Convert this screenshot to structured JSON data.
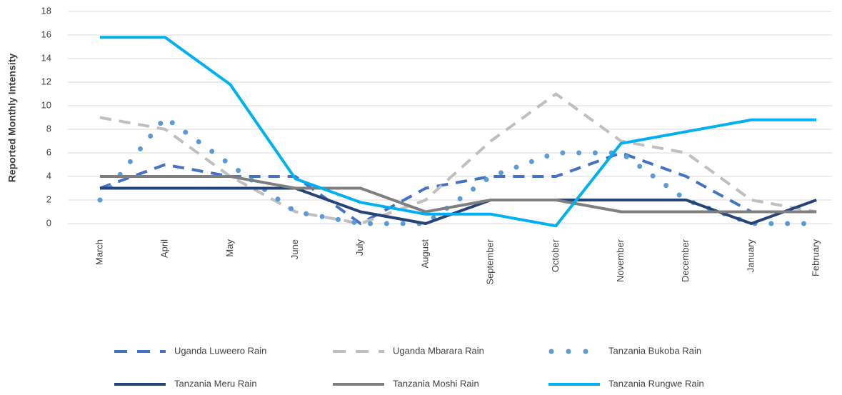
{
  "chart_data": {
    "type": "line",
    "y_label": "Reported Monthly Intensity",
    "categories": [
      "March",
      "April",
      "May",
      "June",
      "July",
      "August",
      "September",
      "October",
      "November",
      "December",
      "January",
      "February"
    ],
    "ylim": [
      0,
      18
    ],
    "yticks": [
      0,
      2,
      4,
      6,
      8,
      10,
      12,
      14,
      16,
      18
    ],
    "grid": true,
    "legend": "bottom",
    "series": [
      {
        "name": "Uganda Luweero Rain",
        "color": "#4472c4",
        "style": "dashed",
        "values": [
          3,
          5,
          4,
          4,
          0,
          3,
          4,
          4,
          6,
          4,
          1,
          1
        ]
      },
      {
        "name": "Uganda Mbarara Rain",
        "color": "#bfbfbf",
        "style": "dashed",
        "values": [
          9,
          8,
          4,
          1,
          0,
          2,
          7,
          11,
          7,
          6,
          2,
          1
        ]
      },
      {
        "name": "Tanzania Bukoba Rain",
        "color": "#5b9bd5",
        "style": "dotted",
        "values": [
          2,
          9,
          5,
          1,
          0,
          0,
          4,
          6,
          6,
          2,
          0,
          0
        ]
      },
      {
        "name": "Tanzania Meru Rain",
        "color": "#264478",
        "style": "solid",
        "values": [
          3,
          3,
          3,
          3,
          1,
          0,
          2,
          2,
          2,
          2,
          0,
          2
        ]
      },
      {
        "name": "Tanzania Moshi Rain",
        "color": "#7f7f7f",
        "style": "solid",
        "values": [
          4,
          4,
          4,
          3,
          3,
          1,
          2,
          2,
          1,
          1,
          1,
          1
        ]
      },
      {
        "name": "Tanzania Rungwe Rain",
        "color": "#00b0f0",
        "style": "solid",
        "values": [
          15.8,
          15.8,
          11.8,
          3.8,
          1.8,
          0.8,
          0.8,
          -0.2,
          6.8,
          7.8,
          8.8,
          8.8
        ]
      }
    ]
  }
}
